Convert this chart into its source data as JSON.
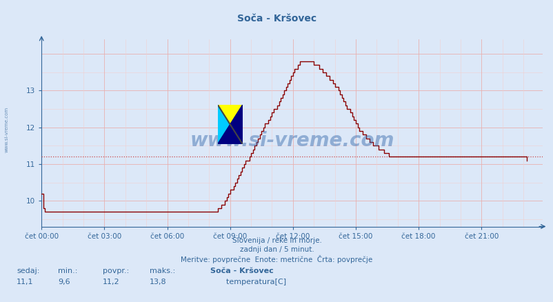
{
  "title": "Soča - Kršovec",
  "line_color": "#8b0000",
  "avg_line_color": "#cc4444",
  "bg_color": "#dce8f8",
  "grid_major_color": "#e8b0b0",
  "grid_minor_color": "#f0d0d0",
  "axis_color": "#336699",
  "text_color": "#336699",
  "avg_value": 11.2,
  "min_value": 9.6,
  "max_value": 13.8,
  "current_value": 11.1,
  "ylabel_ticks": [
    10,
    11,
    12,
    13
  ],
  "ylim": [
    9.3,
    14.4
  ],
  "xlim": [
    0,
    288
  ],
  "xlabel_ticks": [
    0,
    36,
    72,
    108,
    144,
    180,
    216,
    252
  ],
  "xlabel_labels": [
    "čet 00:00",
    "čet 03:00",
    "čet 06:00",
    "čet 09:00",
    "čet 12:00",
    "čet 15:00",
    "čet 18:00",
    "čet 21:00"
  ],
  "watermark": "www.si-vreme.com",
  "subtitle1": "Slovenija / reke in morje.",
  "subtitle2": "zadnji dan / 5 minut.",
  "subtitle3": "Meritve: povprečne  Enote: metrične  Črta: povprečje",
  "legend_label": "Soča - Kršovec",
  "legend_item": "temperatura[C]",
  "stat_labels": [
    "sedaj:",
    "min.:",
    "povpr.:",
    "maks.:"
  ],
  "stat_values": [
    "11,1",
    "9,6",
    "11,2",
    "13,8"
  ],
  "temperature_data": [
    10.2,
    9.8,
    9.7,
    9.7,
    9.7,
    9.7,
    9.7,
    9.7,
    9.7,
    9.7,
    9.7,
    9.7,
    9.7,
    9.7,
    9.7,
    9.7,
    9.7,
    9.7,
    9.7,
    9.7,
    9.7,
    9.7,
    9.7,
    9.7,
    9.7,
    9.7,
    9.7,
    9.7,
    9.7,
    9.7,
    9.7,
    9.7,
    9.7,
    9.7,
    9.7,
    9.7,
    9.7,
    9.7,
    9.7,
    9.7,
    9.7,
    9.7,
    9.7,
    9.7,
    9.7,
    9.7,
    9.7,
    9.7,
    9.7,
    9.7,
    9.7,
    9.7,
    9.7,
    9.7,
    9.7,
    9.7,
    9.7,
    9.7,
    9.7,
    9.7,
    9.7,
    9.7,
    9.7,
    9.7,
    9.7,
    9.7,
    9.7,
    9.7,
    9.7,
    9.7,
    9.7,
    9.7,
    9.7,
    9.7,
    9.7,
    9.7,
    9.7,
    9.7,
    9.7,
    9.7,
    9.7,
    9.7,
    9.7,
    9.7,
    9.7,
    9.7,
    9.7,
    9.7,
    9.7,
    9.7,
    9.7,
    9.7,
    9.7,
    9.7,
    9.7,
    9.7,
    9.7,
    9.7,
    9.7,
    9.7,
    9.7,
    9.8,
    9.8,
    9.9,
    9.9,
    10.0,
    10.1,
    10.2,
    10.3,
    10.3,
    10.4,
    10.5,
    10.6,
    10.7,
    10.8,
    10.9,
    11.0,
    11.1,
    11.1,
    11.2,
    11.3,
    11.4,
    11.5,
    11.6,
    11.7,
    11.8,
    11.9,
    12.0,
    12.1,
    12.1,
    12.2,
    12.3,
    12.4,
    12.5,
    12.5,
    12.6,
    12.7,
    12.8,
    12.9,
    13.0,
    13.1,
    13.2,
    13.3,
    13.4,
    13.5,
    13.6,
    13.6,
    13.7,
    13.8,
    13.8,
    13.8,
    13.8,
    13.8,
    13.8,
    13.8,
    13.8,
    13.7,
    13.7,
    13.7,
    13.6,
    13.6,
    13.5,
    13.5,
    13.4,
    13.4,
    13.3,
    13.3,
    13.2,
    13.1,
    13.1,
    13.0,
    12.9,
    12.8,
    12.7,
    12.6,
    12.5,
    12.5,
    12.4,
    12.3,
    12.2,
    12.1,
    12.0,
    11.9,
    11.9,
    11.8,
    11.8,
    11.7,
    11.7,
    11.6,
    11.6,
    11.5,
    11.5,
    11.5,
    11.4,
    11.4,
    11.4,
    11.3,
    11.3,
    11.3,
    11.2,
    11.2,
    11.2,
    11.2,
    11.2,
    11.2,
    11.2,
    11.2,
    11.2,
    11.2,
    11.2,
    11.2,
    11.2,
    11.2,
    11.2,
    11.2,
    11.2,
    11.2,
    11.2,
    11.2,
    11.2,
    11.2,
    11.2,
    11.2,
    11.2,
    11.2,
    11.2,
    11.2,
    11.2,
    11.2,
    11.2,
    11.2,
    11.2,
    11.2,
    11.2,
    11.2,
    11.2,
    11.2,
    11.2,
    11.2,
    11.2,
    11.2,
    11.2,
    11.2,
    11.2,
    11.2,
    11.2,
    11.2,
    11.2,
    11.2,
    11.2,
    11.2,
    11.2,
    11.2,
    11.2,
    11.2,
    11.2,
    11.2,
    11.2,
    11.2,
    11.2,
    11.2,
    11.2,
    11.2,
    11.2,
    11.2,
    11.2,
    11.2,
    11.2,
    11.2,
    11.2,
    11.2,
    11.2,
    11.2,
    11.2,
    11.2,
    11.2,
    11.2,
    11.2,
    11.1
  ]
}
